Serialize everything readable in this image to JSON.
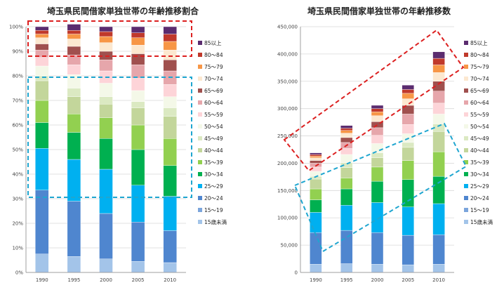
{
  "chart_data": [
    {
      "type": "bar",
      "stacked": true,
      "title": "埼玉県民間借家単独世帯の年齢推移割合",
      "categories": [
        "1990",
        "1995",
        "2000",
        "2005",
        "2010"
      ],
      "ylim": [
        0,
        100
      ],
      "yticks": [
        "0%",
        "10%",
        "20%",
        "30%",
        "40%",
        "50%",
        "60%",
        "70%",
        "80%",
        "90%",
        "100%"
      ],
      "grid": true,
      "legend_position": "right",
      "series": [
        {
          "name": "15歳未満",
          "color": "#a3c4e9",
          "values": [
            7.5,
            6.5,
            5.5,
            4.5,
            4.0
          ]
        },
        {
          "name": "15～19",
          "color": "#7ba5dc",
          "values": [
            0.0,
            0.0,
            0.0,
            0.0,
            0.0
          ]
        },
        {
          "name": "20～24",
          "color": "#4f86cf",
          "values": [
            26.0,
            22.5,
            18.5,
            16.0,
            13.0
          ]
        },
        {
          "name": "25～29",
          "color": "#00b0f0",
          "values": [
            17.0,
            17.0,
            18.0,
            15.0,
            14.0
          ]
        },
        {
          "name": "30～34",
          "color": "#00b050",
          "values": [
            10.5,
            11.0,
            12.5,
            14.5,
            12.5
          ]
        },
        {
          "name": "35～39",
          "color": "#92d050",
          "values": [
            9.0,
            7.5,
            8.5,
            10.0,
            11.0
          ]
        },
        {
          "name": "40～44",
          "color": "#c3d69b",
          "values": [
            8.0,
            7.0,
            5.5,
            7.0,
            9.0
          ]
        },
        {
          "name": "45～49",
          "color": "#dbe9c2",
          "values": [
            2.0,
            3.5,
            3.0,
            2.5,
            3.5
          ]
        },
        {
          "name": "50～54",
          "color": "#f4f8e8",
          "values": [
            4.0,
            5.5,
            5.5,
            4.5,
            4.5
          ]
        },
        {
          "name": "55～59",
          "color": "#fdd4d8",
          "values": [
            3.5,
            4.0,
            5.0,
            5.0,
            5.0
          ]
        },
        {
          "name": "60～64",
          "color": "#e6a6ab",
          "values": [
            3.0,
            4.0,
            4.5,
            5.5,
            5.5
          ]
        },
        {
          "name": "65～69",
          "color": "#a0504e",
          "values": [
            2.5,
            3.5,
            3.5,
            4.5,
            4.5
          ]
        },
        {
          "name": "70～74",
          "color": "#fce8d0",
          "values": [
            2.5,
            3.0,
            3.5,
            3.5,
            4.0
          ]
        },
        {
          "name": "75～79",
          "color": "#f79646",
          "values": [
            1.5,
            2.0,
            2.5,
            3.0,
            3.5
          ]
        },
        {
          "name": "80～84",
          "color": "#c0392b",
          "values": [
            1.5,
            1.5,
            2.0,
            2.0,
            3.0
          ]
        },
        {
          "name": "85以上",
          "color": "#5b2c6f",
          "values": [
            1.5,
            2.5,
            2.0,
            2.5,
            3.0
          ]
        }
      ]
    },
    {
      "type": "bar",
      "stacked": true,
      "title": "埼玉県民間借家単独世帯の年齢推移数",
      "categories": [
        "1990",
        "1995",
        "2000",
        "2005",
        "2010"
      ],
      "ylim": [
        0,
        450000
      ],
      "yticks": [
        "0",
        "50,000",
        "100,000",
        "150,000",
        "200,000",
        "250,000",
        "300,000",
        "350,000",
        "400,000",
        "450,000"
      ],
      "grid": true,
      "legend_position": "right",
      "series": [
        {
          "name": "15歳未満",
          "color": "#a3c4e9",
          "values": [
            15000,
            16000,
            15000,
            14000,
            15000
          ]
        },
        {
          "name": "15～19",
          "color": "#7ba5dc",
          "values": [
            0,
            0,
            0,
            0,
            0
          ]
        },
        {
          "name": "20～24",
          "color": "#4f86cf",
          "values": [
            58000,
            61000,
            58000,
            54000,
            54000
          ]
        },
        {
          "name": "25～29",
          "color": "#00b0f0",
          "values": [
            37000,
            46000,
            55000,
            52000,
            57000
          ]
        },
        {
          "name": "30～34",
          "color": "#00b050",
          "values": [
            23000,
            30000,
            39000,
            50000,
            50000
          ]
        },
        {
          "name": "35～39",
          "color": "#92d050",
          "values": [
            20000,
            20000,
            26000,
            35000,
            45000
          ]
        },
        {
          "name": "40～44",
          "color": "#c3d69b",
          "values": [
            18000,
            19000,
            17000,
            24000,
            37000
          ]
        },
        {
          "name": "45～49",
          "color": "#dbe9c2",
          "values": [
            5000,
            9000,
            9000,
            9000,
            14000
          ]
        },
        {
          "name": "50～54",
          "color": "#f4f8e8",
          "values": [
            9000,
            15000,
            17000,
            16000,
            18000
          ]
        },
        {
          "name": "55～59",
          "color": "#fdd4d8",
          "values": [
            8000,
            11000,
            15000,
            17000,
            20000
          ]
        },
        {
          "name": "60～64",
          "color": "#e6a6ab",
          "values": [
            7000,
            11000,
            14000,
            19000,
            22000
          ]
        },
        {
          "name": "65～69",
          "color": "#a0504e",
          "values": [
            5000,
            9000,
            11000,
            16000,
            18000
          ]
        },
        {
          "name": "70～74",
          "color": "#fce8d0",
          "values": [
            5000,
            8000,
            11000,
            12000,
            16000
          ]
        },
        {
          "name": "75～79",
          "color": "#f79646",
          "values": [
            3000,
            5000,
            7000,
            10000,
            14000
          ]
        },
        {
          "name": "80～84",
          "color": "#c0392b",
          "values": [
            3000,
            4000,
            6000,
            7000,
            12000
          ]
        },
        {
          "name": "85以上",
          "color": "#5b2c6f",
          "values": [
            3000,
            5000,
            6000,
            8000,
            12000
          ]
        }
      ]
    }
  ]
}
